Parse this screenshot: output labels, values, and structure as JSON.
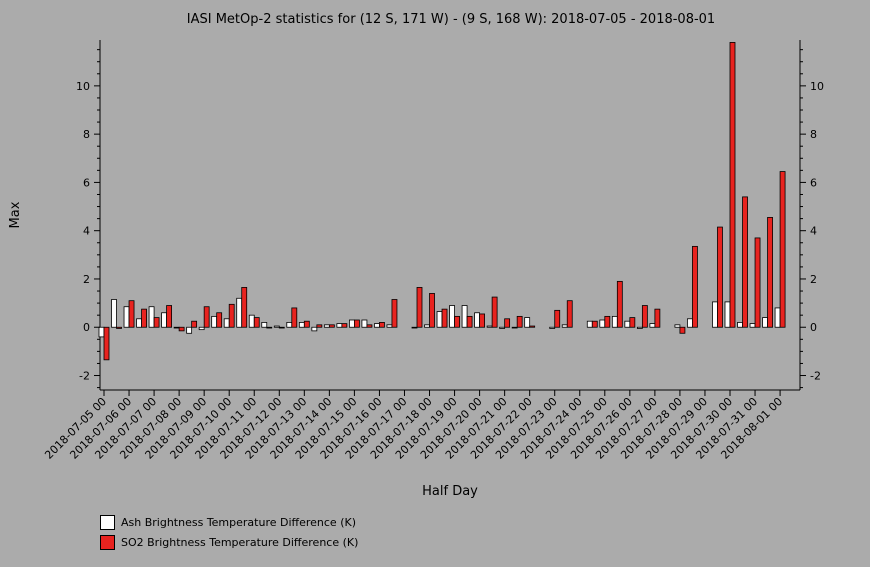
{
  "chart_data": {
    "type": "bar",
    "title": "IASI MetOp-2 statistics for (12 S, 171 W) - (9 S, 168 W): 2018-07-05 - 2018-08-01",
    "xlabel": "Half Day",
    "ylabel": "Max",
    "ylim": [
      -2.6,
      11.9
    ],
    "yticks": [
      -2,
      0,
      2,
      4,
      6,
      8,
      10
    ],
    "grid": false,
    "legend_position": "bottom-left",
    "tick_labels": [
      "2018-07-05 00",
      "2018-07-06 00",
      "2018-07-07 00",
      "2018-07-08 00",
      "2018-07-09 00",
      "2018-07-10 00",
      "2018-07-11 00",
      "2018-07-12 00",
      "2018-07-13 00",
      "2018-07-14 00",
      "2018-07-15 00",
      "2018-07-16 00",
      "2018-07-17 00",
      "2018-07-18 00",
      "2018-07-19 00",
      "2018-07-20 00",
      "2018-07-21 00",
      "2018-07-22 00",
      "2018-07-23 00",
      "2018-07-24 00",
      "2018-07-25 00",
      "2018-07-26 00",
      "2018-07-27 00",
      "2018-07-28 00",
      "2018-07-29 00",
      "2018-07-30 00",
      "2018-07-31 00",
      "2018-08-01 00"
    ],
    "series": [
      {
        "name": "Ash Brightness Temperature Difference (K)",
        "color": "#ffffff",
        "values": [
          -0.4,
          1.15,
          0.85,
          0.35,
          0.85,
          0.6,
          0.0,
          -0.25,
          -0.1,
          0.45,
          0.35,
          1.2,
          0.5,
          0.2,
          0.05,
          0.2,
          0.2,
          -0.15,
          0.1,
          0.15,
          0.3,
          0.3,
          0.15,
          0.1,
          null,
          0.0,
          0.1,
          0.65,
          0.9,
          0.9,
          0.6,
          0.05,
          -0.05,
          0.0,
          0.4,
          null,
          -0.05,
          0.1,
          null,
          0.25,
          0.3,
          0.45,
          0.25,
          -0.05,
          0.15,
          null,
          0.1,
          0.35,
          null,
          1.05,
          1.05,
          0.2,
          0.15,
          0.4,
          0.8
        ]
      },
      {
        "name": "SO2 Brightness Temperature Difference (K)",
        "color": "#e8231f",
        "values": [
          -1.35,
          -0.05,
          1.1,
          0.75,
          0.4,
          0.9,
          -0.15,
          0.25,
          0.85,
          0.6,
          0.95,
          1.65,
          0.4,
          0.0,
          0.0,
          0.8,
          0.25,
          0.1,
          0.1,
          0.15,
          0.3,
          0.1,
          0.2,
          1.15,
          null,
          1.65,
          1.4,
          0.75,
          0.45,
          0.45,
          0.55,
          1.25,
          0.35,
          0.45,
          0.05,
          null,
          0.7,
          1.1,
          null,
          0.25,
          0.45,
          1.9,
          0.4,
          0.9,
          0.75,
          null,
          -0.25,
          3.35,
          null,
          4.15,
          11.8,
          5.4,
          3.7,
          4.55,
          6.45
        ]
      }
    ]
  },
  "legend": {
    "items": [
      {
        "label": "Ash Brightness Temperature Difference (K)",
        "color": "#ffffff"
      },
      {
        "label": "SO2 Brightness Temperature Difference (K)",
        "color": "#e8231f"
      }
    ]
  }
}
